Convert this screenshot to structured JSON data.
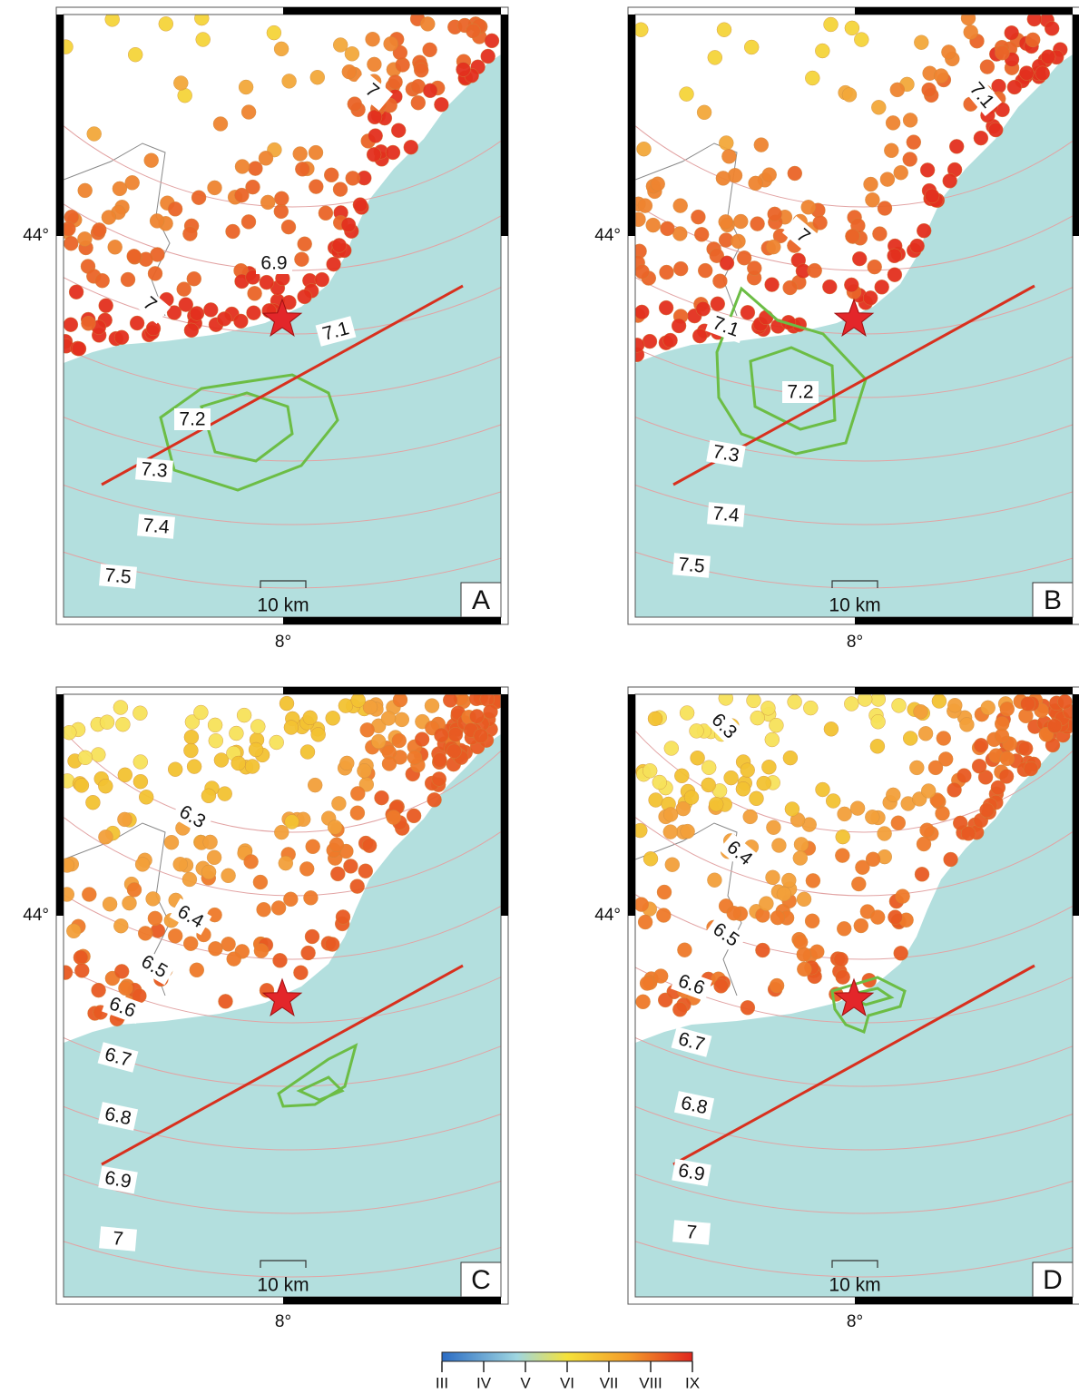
{
  "panels": [
    {
      "letter": "A",
      "contours": [
        7,
        6.9,
        7,
        7.1,
        7.2,
        7.3,
        7.4,
        7.5
      ]
    },
    {
      "letter": "B",
      "contours": [
        7.1,
        7,
        7.1,
        7.2,
        7.3,
        7.4,
        7.5
      ]
    },
    {
      "letter": "C",
      "contours": [
        6.3,
        6.4,
        6.5,
        6.6,
        6.7,
        6.8,
        6.9,
        7
      ]
    },
    {
      "letter": "D",
      "contours": [
        6.3,
        6.4,
        6.5,
        6.6,
        6.7,
        6.8,
        6.9,
        7
      ]
    }
  ],
  "lat_label": "44°",
  "lon_label": "8°",
  "scale_label": "10 km",
  "colorbar": {
    "labels": [
      "III",
      "IV",
      "V",
      "VI",
      "VII",
      "VIII",
      "IX"
    ]
  }
}
